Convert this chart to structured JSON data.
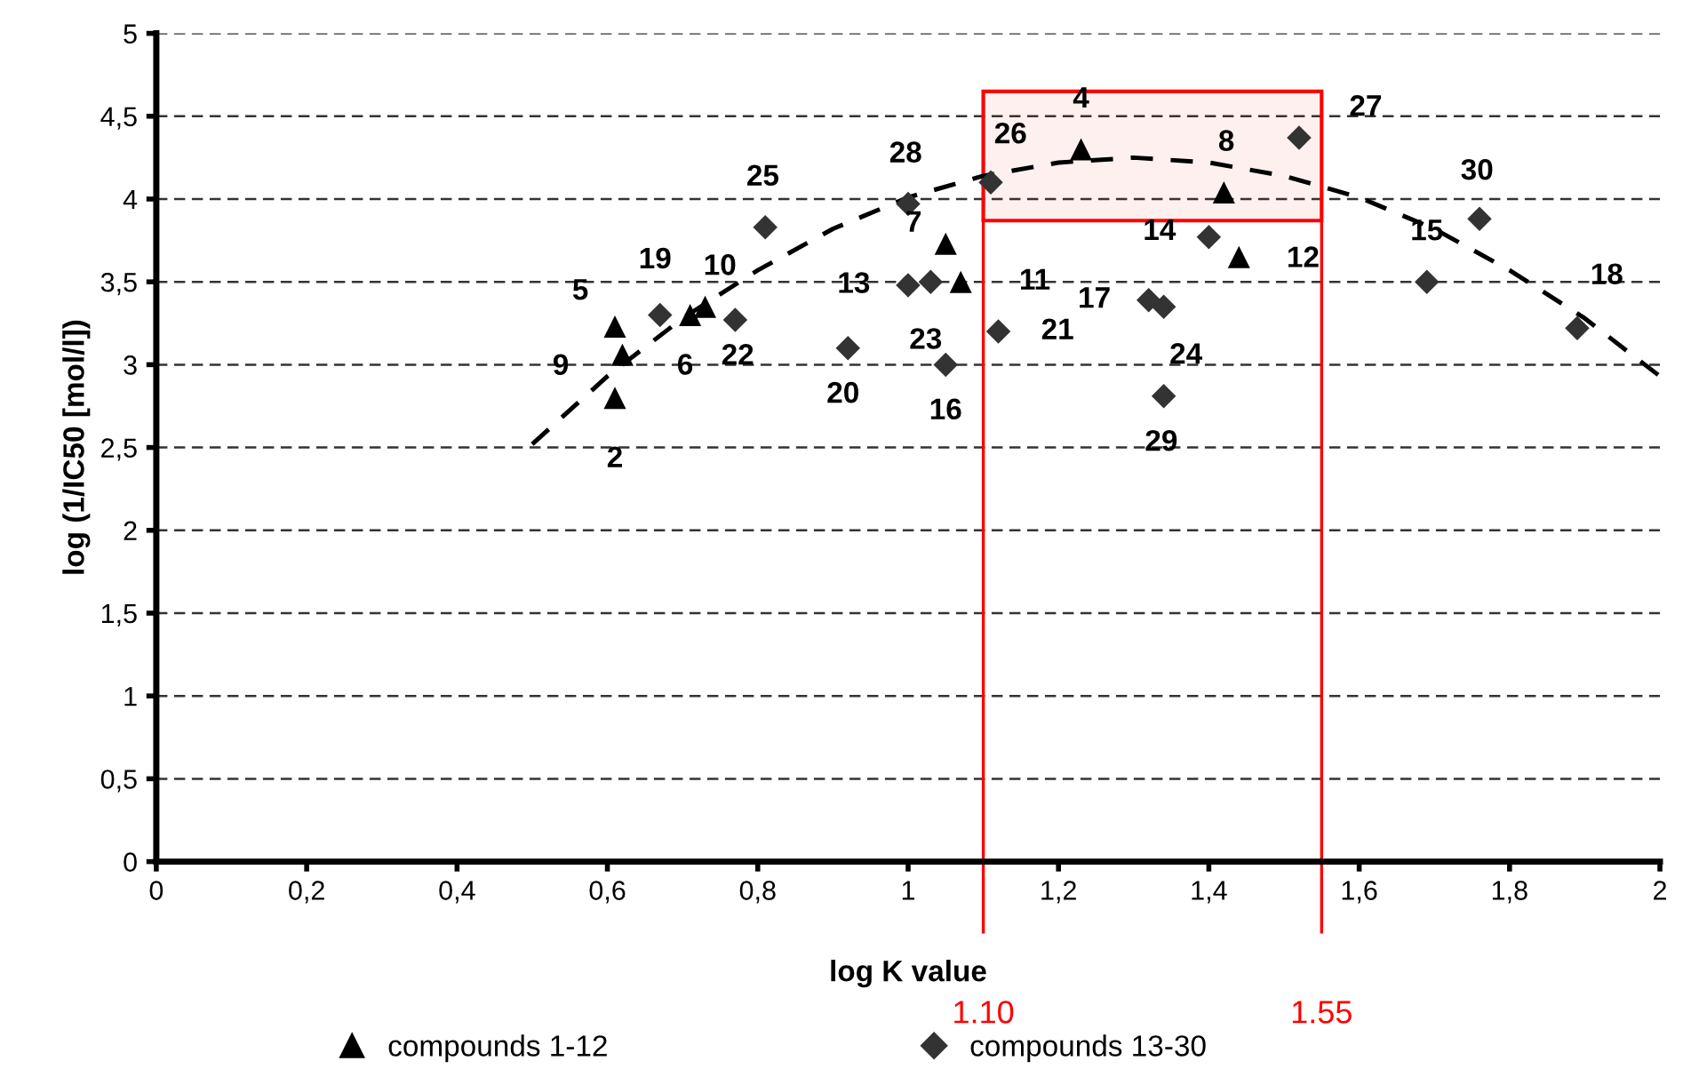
{
  "chart_data": {
    "type": "scatter",
    "xlabel": "log K value",
    "ylabel": "log (1/IC50 [mol/l])",
    "xlim": [
      0,
      2
    ],
    "ylim": [
      0,
      5
    ],
    "xticks": [
      0,
      {
        "value": 0.2,
        "label": "0,2"
      },
      {
        "value": 0.4,
        "label": "0,4"
      },
      {
        "value": 0.6,
        "label": "0,6"
      },
      {
        "value": 0.8,
        "label": "0,8"
      },
      1,
      {
        "value": 1.2,
        "label": "1,2"
      },
      {
        "value": 1.4,
        "label": "1,4"
      },
      {
        "value": 1.6,
        "label": "1,6"
      },
      {
        "value": 1.8,
        "label": "1,8"
      },
      2
    ],
    "yticks": [
      0,
      {
        "value": 0.5,
        "label": "0,5"
      },
      1,
      {
        "value": 1.5,
        "label": "1,5"
      },
      2,
      {
        "value": 2.5,
        "label": "2,5"
      },
      3,
      {
        "value": 3.5,
        "label": "3,5"
      },
      4,
      {
        "value": 4.5,
        "label": "4,5"
      },
      5
    ],
    "grid": "y",
    "legend": "bottom",
    "series": [
      {
        "name": "compounds 1-12",
        "color": "#000000",
        "marker": "triangle",
        "x": [
          0.61,
          1.23,
          0.61,
          0.71,
          1.05,
          1.42,
          0.62,
          0.73,
          1.07,
          1.44
        ],
        "values": [
          2.8,
          4.3,
          3.23,
          3.3,
          3.73,
          4.04,
          3.06,
          3.35,
          3.5,
          3.65
        ]
      },
      {
        "name": "compounds 13-30",
        "color": "#333333",
        "marker": "diamond",
        "x": [
          1.0,
          1.4,
          1.69,
          1.05,
          1.32,
          1.89,
          0.67,
          0.92,
          1.12,
          0.77,
          1.03,
          1.34,
          0.81,
          1.11,
          1.52,
          1.0,
          1.34,
          1.76
        ],
        "values": [
          3.48,
          3.77,
          3.5,
          3.0,
          3.39,
          3.22,
          3.3,
          3.1,
          3.2,
          3.27,
          3.5,
          3.35,
          3.83,
          4.1,
          4.37,
          3.97,
          2.81,
          3.88
        ]
      },
      {
        "type": "line",
        "color": "#000000",
        "line_style": "dashed",
        "marker": "none",
        "x": [
          0.5,
          0.6,
          0.7,
          0.8,
          0.9,
          1.0,
          1.1,
          1.2,
          1.3,
          1.4,
          1.5,
          1.6,
          1.7,
          1.8,
          1.9,
          2.0
        ],
        "values": [
          2.52,
          2.93,
          3.28,
          3.57,
          3.82,
          4.01,
          4.14,
          4.22,
          4.25,
          4.22,
          4.14,
          4.01,
          3.82,
          3.57,
          3.28,
          2.93
        ]
      }
    ],
    "ref_lines": [
      {
        "axis": "x",
        "value": 1.1,
        "label": "1.10",
        "color": "#ff0000"
      },
      {
        "axis": "x",
        "value": 1.55,
        "label": "1.55",
        "color": "#ff0000"
      }
    ],
    "bands": [
      {
        "axis": "y",
        "from": 3.87,
        "to": 4.65,
        "color": "#ff0000"
      }
    ],
    "annotations": [
      {
        "text": "2",
        "x": 0.61,
        "y": 2.8
      },
      {
        "text": "4",
        "x": 1.23,
        "y": 4.3
      },
      {
        "text": "5",
        "x": 0.61,
        "y": 3.23
      },
      {
        "text": "6",
        "x": 0.71,
        "y": 3.3
      },
      {
        "text": "7",
        "x": 1.05,
        "y": 3.73
      },
      {
        "text": "8",
        "x": 1.42,
        "y": 4.04
      },
      {
        "text": "9",
        "x": 0.62,
        "y": 3.06
      },
      {
        "text": "10",
        "x": 0.73,
        "y": 3.35
      },
      {
        "text": "11",
        "x": 1.07,
        "y": 3.5
      },
      {
        "text": "12",
        "x": 1.44,
        "y": 3.65
      },
      {
        "text": "13",
        "x": 1.0,
        "y": 3.48
      },
      {
        "text": "14",
        "x": 1.4,
        "y": 3.77
      },
      {
        "text": "15",
        "x": 1.69,
        "y": 3.5
      },
      {
        "text": "16",
        "x": 1.05,
        "y": 3.0
      },
      {
        "text": "17",
        "x": 1.32,
        "y": 3.39
      },
      {
        "text": "18",
        "x": 1.89,
        "y": 3.22
      },
      {
        "text": "19",
        "x": 0.67,
        "y": 3.3
      },
      {
        "text": "20",
        "x": 0.92,
        "y": 3.1
      },
      {
        "text": "21",
        "x": 1.12,
        "y": 3.2
      },
      {
        "text": "22",
        "x": 0.77,
        "y": 3.27
      },
      {
        "text": "23",
        "x": 1.03,
        "y": 3.5
      },
      {
        "text": "24",
        "x": 1.34,
        "y": 3.35
      },
      {
        "text": "25",
        "x": 0.81,
        "y": 3.83
      },
      {
        "text": "26",
        "x": 1.11,
        "y": 4.1
      },
      {
        "text": "27",
        "x": 1.52,
        "y": 4.37
      },
      {
        "text": "28",
        "x": 1.0,
        "y": 3.97
      },
      {
        "text": "29",
        "x": 1.34,
        "y": 2.81
      },
      {
        "text": "30",
        "x": 1.76,
        "y": 3.88
      }
    ]
  }
}
